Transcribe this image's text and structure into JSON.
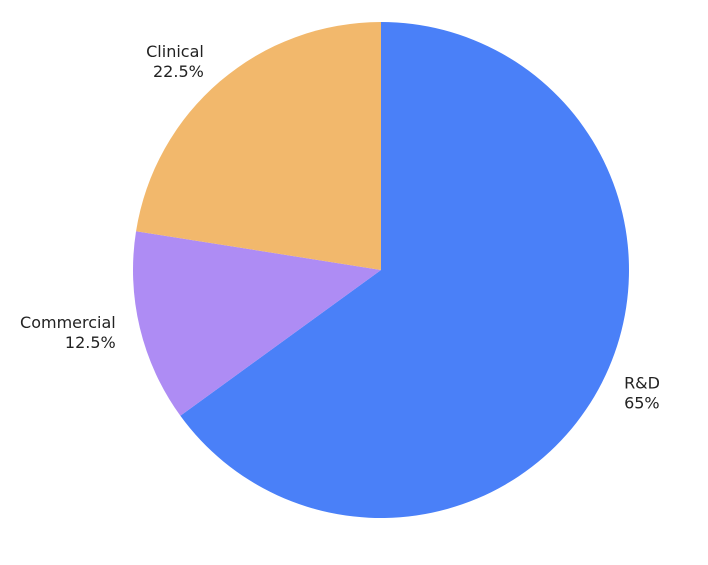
{
  "chart_data": {
    "type": "pie",
    "categories": [
      "R&D",
      "Commercial",
      "Clinical"
    ],
    "values": [
      65,
      12.5,
      22.5
    ],
    "value_labels": [
      "65%",
      "12.5%",
      "22.5%"
    ],
    "colors": [
      "#4a80f8",
      "#ae8cf4",
      "#f2b86c"
    ]
  }
}
